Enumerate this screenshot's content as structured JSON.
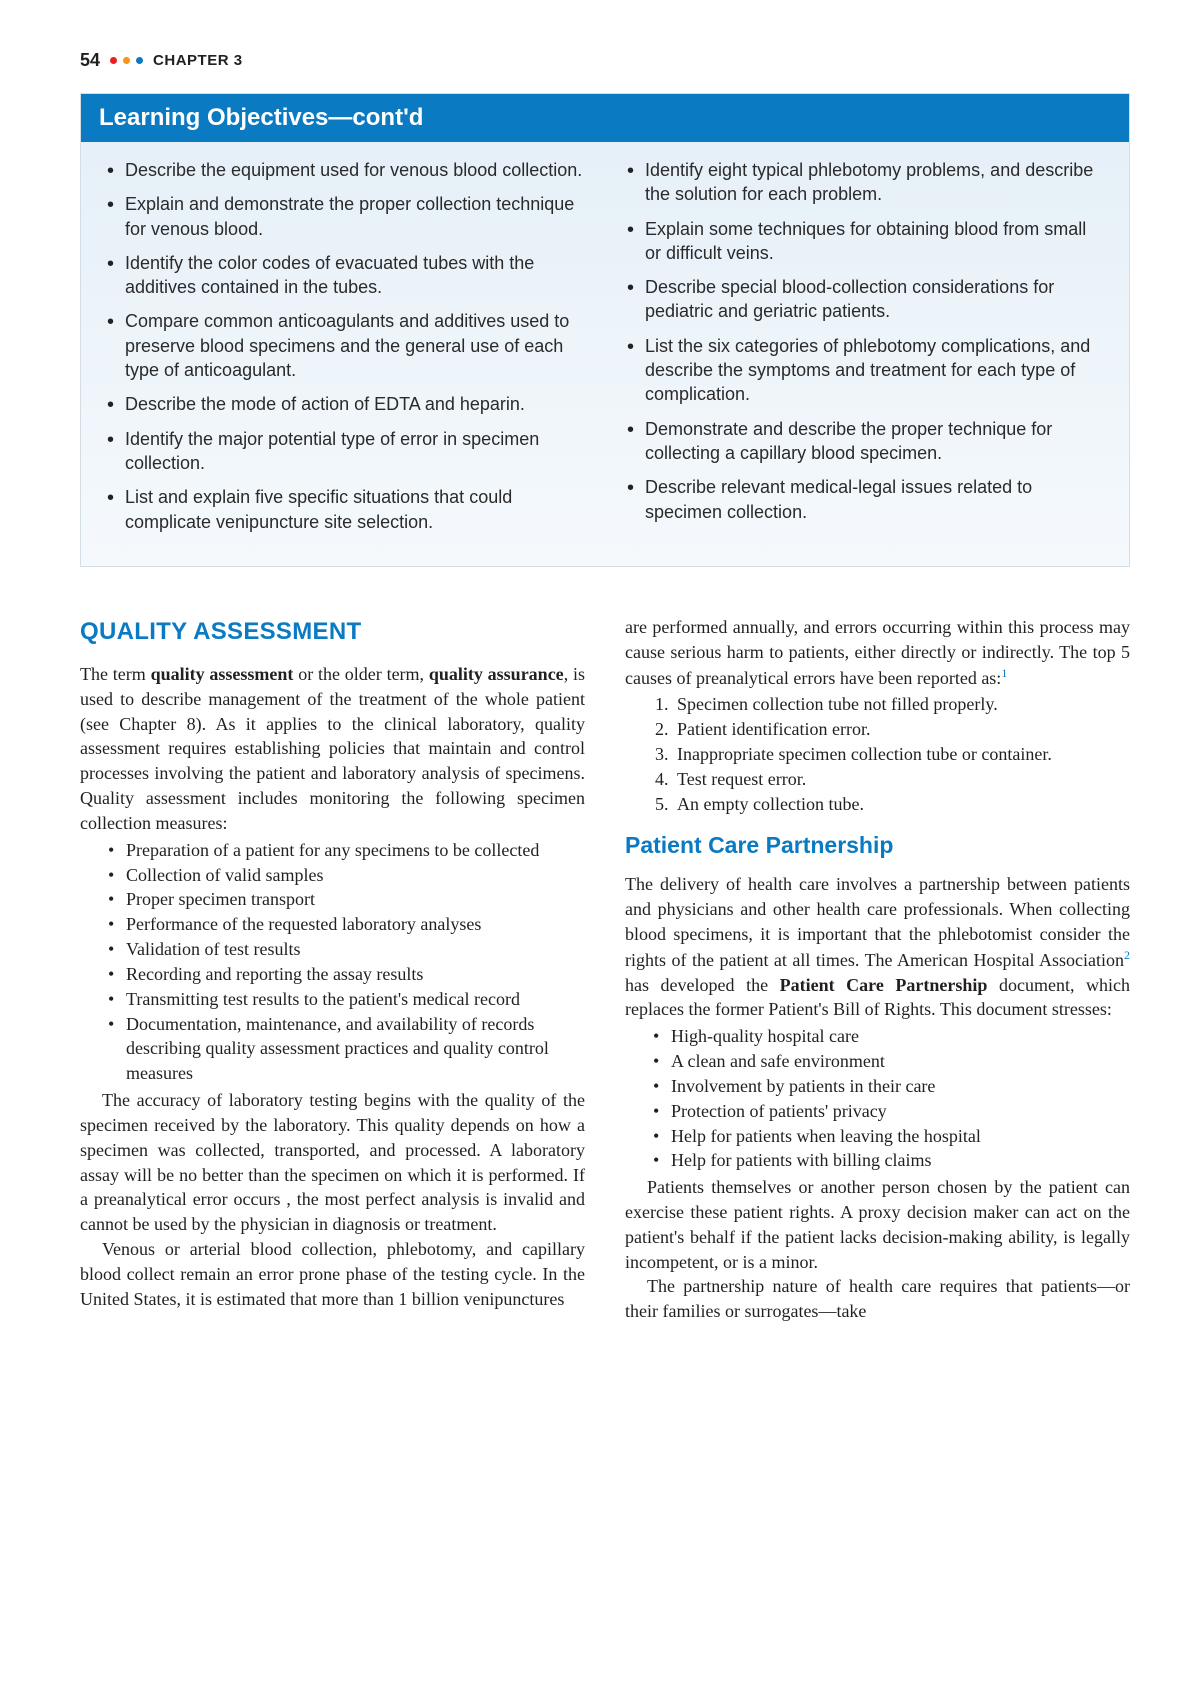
{
  "header": {
    "page_number": "54",
    "dot_colors": [
      "#ed1c24",
      "#f7941d",
      "#0a7ac2"
    ],
    "chapter_label": "CHAPTER 3"
  },
  "objectives": {
    "title": "Learning Objectives—cont'd",
    "header_bg": "#0a7ac2",
    "body_bg_top": "#e6f0f8",
    "left": [
      "Describe the equipment used for venous blood collection.",
      "Explain and demonstrate the proper collection technique for venous blood.",
      "Identify the color codes of evacuated tubes with the additives contained in the tubes.",
      "Compare common anticoagulants and additives used to preserve blood specimens and the general use of each type of anticoagulant.",
      "Describe the mode of action of EDTA and heparin.",
      "Identify the major potential type of error in specimen collection.",
      "List and explain five specific situations that could complicate venipuncture site selection."
    ],
    "right": [
      "Identify eight typical phlebotomy problems, and describe the solution for each problem.",
      "Explain some techniques for obtaining blood from small or difficult veins.",
      "Describe special blood-collection considerations for pediatric and geriatric patients.",
      "List the six categories of phlebotomy complications, and describe the symptoms and treatment for each type of complication.",
      "Demonstrate and describe the proper technique for collecting a capillary blood specimen.",
      "Describe relevant medical-legal issues related to specimen collection."
    ]
  },
  "left_col": {
    "section_title": "QUALITY ASSESSMENT",
    "para1_prefix": "The term ",
    "para1_bold1": "quality assessment",
    "para1_mid1": " or the older term, ",
    "para1_bold2": "quality assurance",
    "para1_rest": ", is used to describe management of the treatment of the whole patient (see Chapter 8). As it applies to the clinical laboratory, quality assessment requires establishing policies that maintain and control processes involving the patient and laboratory analysis of specimens. Quality assessment includes monitoring the following specimen collection measures:",
    "qa_list": [
      "Preparation of a patient for any specimens to be collected",
      "Collection of valid samples",
      "Proper specimen transport",
      "Performance of the requested laboratory analyses",
      "Validation of test results",
      "Recording and reporting the assay results",
      "Transmitting test results to the patient's medical record",
      "Documentation, maintenance, and availability of records describing quality assessment practices and quality control measures"
    ],
    "para2": "The accuracy of laboratory testing begins with the quality of the specimen received by the laboratory. This quality depends on how a specimen was collected, transported, and processed. A laboratory assay will be no better than the specimen on which it is performed. If a preanalytical error occurs , the most perfect analysis is invalid and cannot be used by the physician in diagnosis or treatment.",
    "para3": "Venous or arterial blood collection, phlebotomy, and capillary blood collect remain an error prone phase of the testing cycle. In the United States, it is estimated that more than 1 billion venipunctures"
  },
  "right_col": {
    "para1_pre": "are performed annually, and errors occurring within this process may cause serious harm to patients, either directly or indirectly. The top 5 causes of preanalytical errors have been reported as:",
    "ref1": "1",
    "errors": [
      "Specimen collection tube not filled properly.",
      "Patient identification error.",
      "Inappropriate specimen collection tube or container.",
      "Test request error.",
      "An empty collection tube."
    ],
    "section_title": "Patient Care Partnership",
    "para2_pre": "The delivery of health care involves a partnership between patients and physicians and other health care professionals. When collecting blood specimens, it is important that the phlebotomist consider the rights of the patient at all times. The American Hospital Association",
    "ref2": "2",
    "para2_mid": " has developed the ",
    "para2_bold": "Patient Care Partnership",
    "para2_post": " document, which replaces the former Patient's Bill of Rights. This document stresses:",
    "pcp_list": [
      "High-quality hospital care",
      "A clean and safe environment",
      "Involvement by patients in their care",
      "Protection of patients' privacy",
      "Help for patients when leaving the hospital",
      "Help for patients with billing claims"
    ],
    "para3": "Patients themselves or another person chosen by the patient can exercise these patient rights. A proxy decision maker can act on the patient's behalf if the patient lacks decision-making ability, is legally incompetent, or is a minor.",
    "para4": "The partnership nature of health care requires that patients—or their families or surrogates—take"
  }
}
